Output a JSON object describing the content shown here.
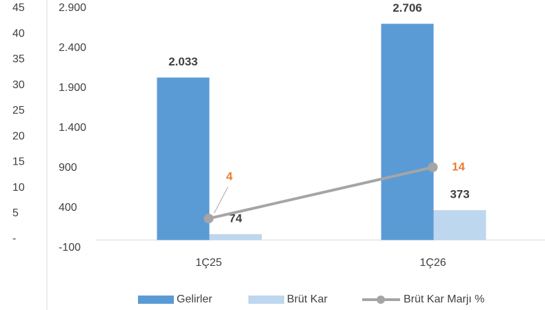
{
  "chart_data": {
    "type": "bar_line",
    "categories": [
      "1Ç25",
      "1Ç26"
    ],
    "series": [
      {
        "name": "Gelirler",
        "type": "bar",
        "color": "#5b9bd5",
        "values": [
          2033,
          2706
        ],
        "value_labels": [
          "2.033",
          "2.706"
        ]
      },
      {
        "name": "Brüt Kar",
        "type": "bar",
        "color": "#bdd7ee",
        "values": [
          74,
          373
        ]
      },
      {
        "name": "Brüt Kar Marjı %",
        "type": "line",
        "axis": "y2",
        "color": "#a5a5a5",
        "label_color": "#ed7d31",
        "values": [
          4,
          14
        ]
      }
    ],
    "ylim": [
      -100,
      2900
    ],
    "yticks": [
      -100,
      400,
      900,
      {
        "value": 1400,
        "label": "1.400"
      },
      {
        "value": 1900,
        "label": "1.900"
      },
      {
        "value": 2400,
        "label": "2.400"
      },
      {
        "value": 2900,
        "label": "2.900"
      }
    ],
    "y2lim": [
      0,
      45
    ],
    "y2ticks": [
      {
        "value": 0,
        "label": "-"
      },
      5,
      10,
      15,
      20,
      25,
      30,
      35,
      40,
      45
    ],
    "legend": "bottom"
  }
}
